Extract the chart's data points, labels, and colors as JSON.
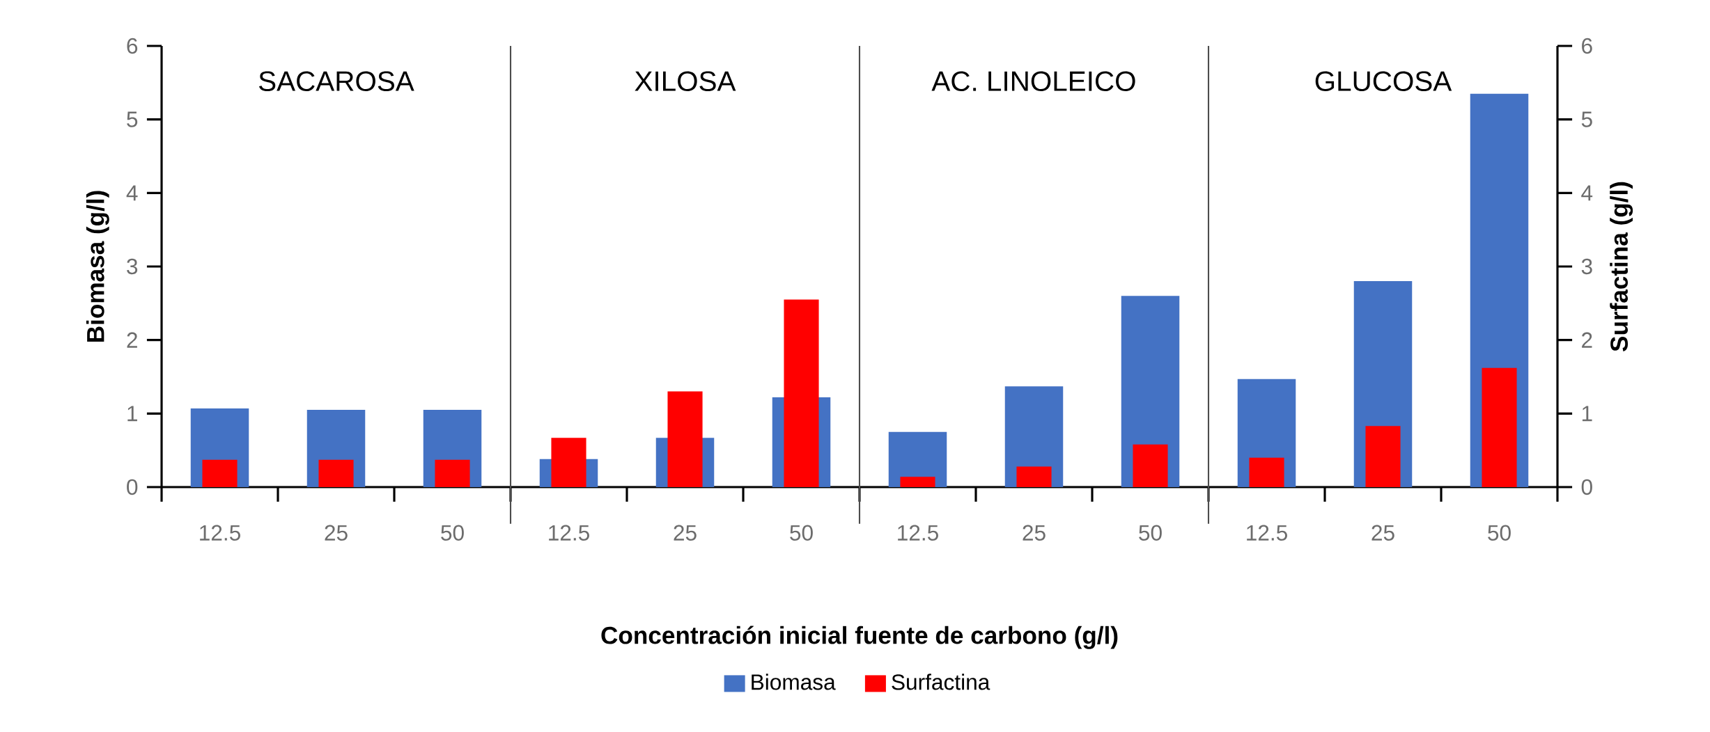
{
  "chart_data": {
    "type": "bar",
    "categories": [
      "12.5",
      "25",
      "50",
      "12.5",
      "25",
      "50",
      "12.5",
      "25",
      "50",
      "12.5",
      "25",
      "50"
    ],
    "series": [
      {
        "name": "Biomasa",
        "color": "#4472c4",
        "values": [
          1.07,
          1.05,
          1.05,
          0.38,
          0.67,
          1.22,
          0.75,
          1.37,
          2.6,
          1.47,
          2.8,
          5.35
        ]
      },
      {
        "name": "Surfactina",
        "color": "#ff0000",
        "axis": "y2",
        "values": [
          0.37,
          0.37,
          0.37,
          0.67,
          1.3,
          2.55,
          0.14,
          0.28,
          0.58,
          0.4,
          0.83,
          1.62
        ]
      }
    ],
    "xlabel": "Concentración inicial fuente de carbono (g/l)",
    "ylabel": "Biomasa (g/l)",
    "y2label": "Surfactina (g/l)",
    "ylim": [
      0,
      6
    ],
    "yticks": [
      0,
      1,
      2,
      3,
      4,
      5,
      6
    ],
    "y2lim": [
      0,
      6
    ],
    "y2ticks": [
      0,
      1,
      2,
      3,
      4,
      5,
      6
    ],
    "annotations": [
      "SACAROSA",
      "XILOSA",
      "AC. LINOLEICO",
      "GLUCOSA"
    ],
    "legend": "bottom"
  }
}
